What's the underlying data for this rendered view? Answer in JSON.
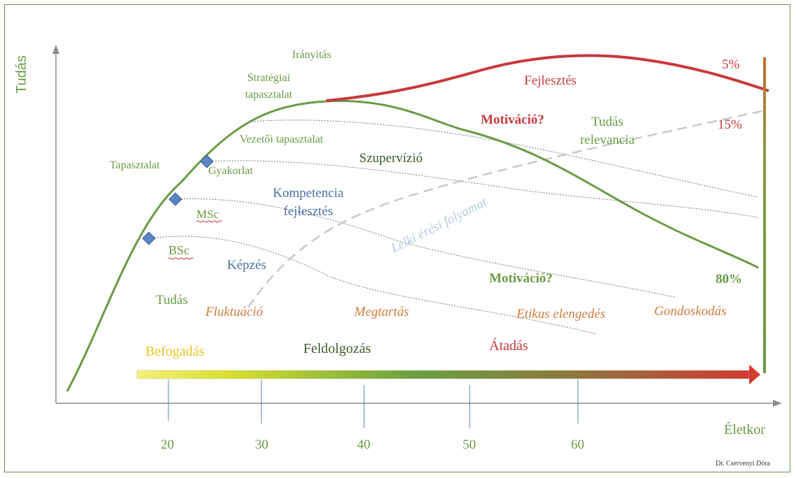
{
  "axes": {
    "y_label": "Tudás",
    "x_label": "Életkor",
    "x_ticks": [
      "20",
      "30",
      "40",
      "50",
      "60"
    ]
  },
  "labels": {
    "iranyitas": "Irányítás",
    "strategiai": "Stratégiai tapasztalat",
    "vezetoi": "Vezetői tapasztalat",
    "tapasztalat": "Tapasztalat",
    "gyakorlat": "Gyakorlat",
    "szupervizio": "Szupervízió",
    "kompetencia": "Kompetencia fejlesztés",
    "msc": "MSc",
    "bsc": "BSc",
    "kepzes": "Képzés",
    "tudas": "Tudás",
    "fluktuacio": "Fluktuáció",
    "megtartas": "Megtartás",
    "etikus": "Etikus elengedés",
    "gondoskodas": "Gondoskodás",
    "fejlesztes": "Fejlesztés",
    "motivacio_top": "Motiváció?",
    "motivacio_bottom": "Motiváció?",
    "tudas_relevancia": "Tudás relevancia",
    "lelki": "Lelki érési folyamat",
    "befogadas": "Befogadás",
    "feldolgozas": "Feldolgozás",
    "atadas": "Átadás",
    "pct_5": "5%",
    "pct_15": "15%",
    "pct_80": "80%",
    "author": "Dr. Cservenyi Dóra"
  },
  "colors": {
    "green": "#6a9a45",
    "red": "#c8383c",
    "blue_marker": "#5b84c4",
    "orange": "#d07a3c",
    "axis": "#8c8c8c"
  }
}
